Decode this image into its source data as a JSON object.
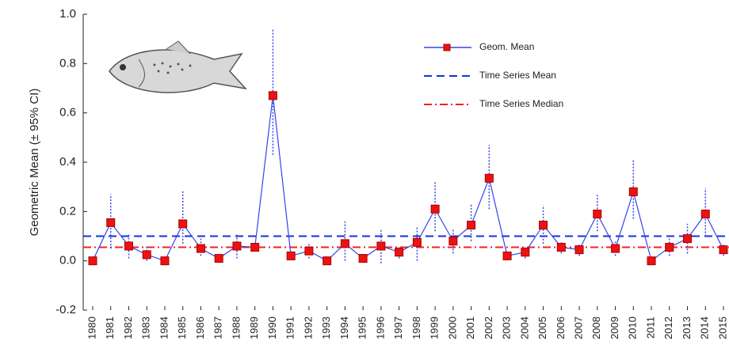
{
  "chart_data": {
    "type": "line",
    "y_label": "Geometric Mean (± 95% CI)",
    "categories": [
      "1980",
      "1981",
      "1982",
      "1983",
      "1984",
      "1985",
      "1986",
      "1987",
      "1988",
      "1989",
      "1990",
      "1991",
      "1992",
      "1993",
      "1994",
      "1995",
      "1996",
      "1997",
      "1998",
      "1999",
      "2000",
      "2001",
      "2002",
      "2003",
      "2004",
      "2005",
      "2006",
      "2007",
      "2008",
      "2009",
      "2010",
      "2011",
      "2012",
      "2013",
      "2014",
      "2015"
    ],
    "series": [
      {
        "name": "Geom. Mean",
        "color": "#3344ee",
        "marker_color": "#ee1111",
        "values": [
          0.0,
          0.155,
          0.06,
          0.025,
          0.0,
          0.15,
          0.05,
          0.01,
          0.06,
          0.055,
          0.67,
          0.02,
          0.04,
          0.0,
          0.07,
          0.01,
          0.06,
          0.035,
          0.075,
          0.21,
          0.08,
          0.145,
          0.335,
          0.02,
          0.035,
          0.145,
          0.055,
          0.045,
          0.19,
          0.05,
          0.28,
          0.0,
          0.055,
          0.09,
          0.19,
          0.045
        ],
        "lower": [
          null,
          0.05,
          0.01,
          0.0,
          null,
          0.07,
          0.02,
          null,
          0.01,
          null,
          0.43,
          null,
          0.01,
          null,
          0.0,
          null,
          -0.01,
          0.01,
          0.0,
          0.12,
          0.03,
          0.08,
          0.21,
          null,
          0.01,
          0.07,
          0.03,
          0.02,
          0.12,
          0.02,
          0.17,
          null,
          0.02,
          0.03,
          0.1,
          0.02
        ],
        "upper": [
          null,
          0.27,
          0.11,
          0.06,
          null,
          0.285,
          0.09,
          null,
          0.11,
          null,
          0.94,
          null,
          0.07,
          null,
          0.16,
          null,
          0.13,
          0.06,
          0.14,
          0.32,
          0.13,
          0.23,
          0.47,
          null,
          0.06,
          0.225,
          0.08,
          0.07,
          0.27,
          0.08,
          0.41,
          null,
          0.09,
          0.15,
          0.295,
          0.07
        ]
      }
    ],
    "reference_lines": [
      {
        "name": "Time Series Mean",
        "color": "#1133dd",
        "value": 0.1,
        "dash": "10 6"
      },
      {
        "name": "Time Series Median",
        "color": "#ee2222",
        "value": 0.055,
        "dash": "10 4 2 4"
      }
    ],
    "ylim": [
      -0.2,
      1.0
    ],
    "yticks": [
      -0.2,
      {
        "value": 0,
        "label": "0.0"
      },
      0.2,
      0.4,
      0.6,
      0.8,
      {
        "value": 1,
        "label": "1.0"
      }
    ]
  }
}
